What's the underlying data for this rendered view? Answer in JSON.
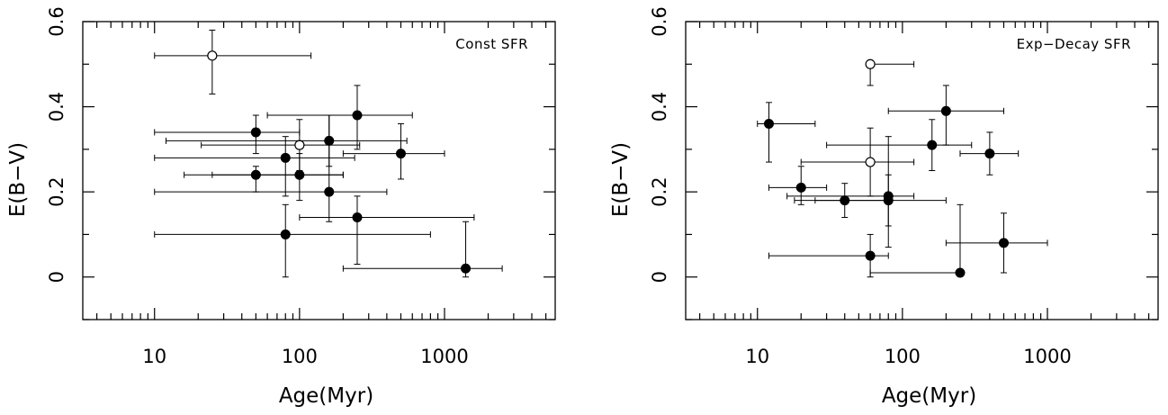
{
  "chart_data": [
    {
      "type": "scatter",
      "title": "Const SFR",
      "xlabel": "Age(Myr)",
      "ylabel": "E(B−V)",
      "x_scale": "log",
      "xlim": [
        3.2,
        5800
      ],
      "ylim": [
        -0.1,
        0.6
      ],
      "x_ticks": [
        10,
        100,
        1000
      ],
      "x_tick_labels": [
        "10",
        "100",
        "1000"
      ],
      "y_ticks": [
        0,
        0.2,
        0.4,
        0.6
      ],
      "y_tick_labels": [
        "0",
        "0.2",
        "0.4",
        "0.6"
      ],
      "grid": false,
      "points": [
        {
          "x": 25,
          "y": 0.52,
          "xmin": 10,
          "xmax": 120,
          "ymin": 0.43,
          "ymax": 0.58,
          "filled": false
        },
        {
          "x": 100,
          "y": 0.31,
          "xmin": 21,
          "xmax": 260,
          "ymin": 0.25,
          "ymax": 0.37,
          "filled": false
        },
        {
          "x": 50,
          "y": 0.34,
          "xmin": 10,
          "xmax": 100,
          "ymin": 0.29,
          "ymax": 0.38,
          "filled": true
        },
        {
          "x": 250,
          "y": 0.38,
          "xmin": 60,
          "xmax": 600,
          "ymin": 0.3,
          "ymax": 0.45,
          "filled": true
        },
        {
          "x": 160,
          "y": 0.32,
          "xmin": 12,
          "xmax": 550,
          "ymin": 0.26,
          "ymax": 0.38,
          "filled": true
        },
        {
          "x": 80,
          "y": 0.28,
          "xmin": 10,
          "xmax": 240,
          "ymin": 0.19,
          "ymax": 0.33,
          "filled": true
        },
        {
          "x": 500,
          "y": 0.29,
          "xmin": 200,
          "xmax": 1000,
          "ymin": 0.23,
          "ymax": 0.36,
          "filled": true
        },
        {
          "x": 50,
          "y": 0.24,
          "xmin": 16,
          "xmax": 200,
          "ymin": 0.2,
          "ymax": 0.26,
          "filled": true
        },
        {
          "x": 100,
          "y": 0.24,
          "xmin": 25,
          "xmax": 200,
          "ymin": 0.18,
          "ymax": 0.29,
          "filled": true
        },
        {
          "x": 160,
          "y": 0.2,
          "xmin": 10,
          "xmax": 400,
          "ymin": 0.13,
          "ymax": 0.38,
          "filled": true
        },
        {
          "x": 250,
          "y": 0.14,
          "xmin": 100,
          "xmax": 1600,
          "ymin": 0.03,
          "ymax": 0.19,
          "filled": true
        },
        {
          "x": 80,
          "y": 0.1,
          "xmin": 10,
          "xmax": 800,
          "ymin": 0.0,
          "ymax": 0.17,
          "filled": true
        },
        {
          "x": 1400,
          "y": 0.02,
          "xmin": 200,
          "xmax": 2500,
          "ymin": 0.0,
          "ymax": 0.13,
          "filled": true
        }
      ]
    },
    {
      "type": "scatter",
      "title": "Exp−Decay SFR",
      "xlabel": "Age(Myr)",
      "ylabel": "E(B−V)",
      "x_scale": "log",
      "xlim": [
        3.2,
        5800
      ],
      "ylim": [
        -0.1,
        0.6
      ],
      "x_ticks": [
        10,
        100,
        1000
      ],
      "x_tick_labels": [
        "10",
        "100",
        "1000"
      ],
      "y_ticks": [
        0,
        0.2,
        0.4,
        0.6
      ],
      "y_tick_labels": [
        "0",
        "0.2",
        "0.4",
        "0.6"
      ],
      "grid": false,
      "points": [
        {
          "x": 60,
          "y": 0.5,
          "xmin": 60,
          "xmax": 120,
          "ymin": 0.45,
          "ymax": 0.5,
          "filled": false
        },
        {
          "x": 60,
          "y": 0.27,
          "xmin": 20,
          "xmax": 120,
          "ymin": 0.19,
          "ymax": 0.35,
          "filled": false
        },
        {
          "x": 12,
          "y": 0.36,
          "xmin": 10,
          "xmax": 25,
          "ymin": 0.27,
          "ymax": 0.41,
          "filled": true
        },
        {
          "x": 200,
          "y": 0.39,
          "xmin": 80,
          "xmax": 500,
          "ymin": 0.31,
          "ymax": 0.45,
          "filled": true
        },
        {
          "x": 160,
          "y": 0.31,
          "xmin": 30,
          "xmax": 300,
          "ymin": 0.25,
          "ymax": 0.37,
          "filled": true
        },
        {
          "x": 400,
          "y": 0.29,
          "xmin": 250,
          "xmax": 630,
          "ymin": 0.24,
          "ymax": 0.34,
          "filled": true
        },
        {
          "x": 20,
          "y": 0.21,
          "xmin": 12,
          "xmax": 30,
          "ymin": 0.17,
          "ymax": 0.26,
          "filled": true
        },
        {
          "x": 40,
          "y": 0.18,
          "xmin": 18,
          "xmax": 80,
          "ymin": 0.14,
          "ymax": 0.22,
          "filled": true
        },
        {
          "x": 80,
          "y": 0.19,
          "xmin": 16,
          "xmax": 120,
          "ymin": 0.12,
          "ymax": 0.24,
          "filled": true
        },
        {
          "x": 80,
          "y": 0.18,
          "xmin": 25,
          "xmax": 200,
          "ymin": 0.07,
          "ymax": 0.33,
          "filled": true
        },
        {
          "x": 60,
          "y": 0.05,
          "xmin": 12,
          "xmax": 80,
          "ymin": 0.0,
          "ymax": 0.1,
          "filled": true
        },
        {
          "x": 250,
          "y": 0.01,
          "xmin": 60,
          "xmax": 250,
          "ymin": 0.01,
          "ymax": 0.17,
          "filled": true
        },
        {
          "x": 500,
          "y": 0.08,
          "xmin": 200,
          "xmax": 1000,
          "ymin": 0.01,
          "ymax": 0.15,
          "filled": true
        }
      ]
    }
  ]
}
